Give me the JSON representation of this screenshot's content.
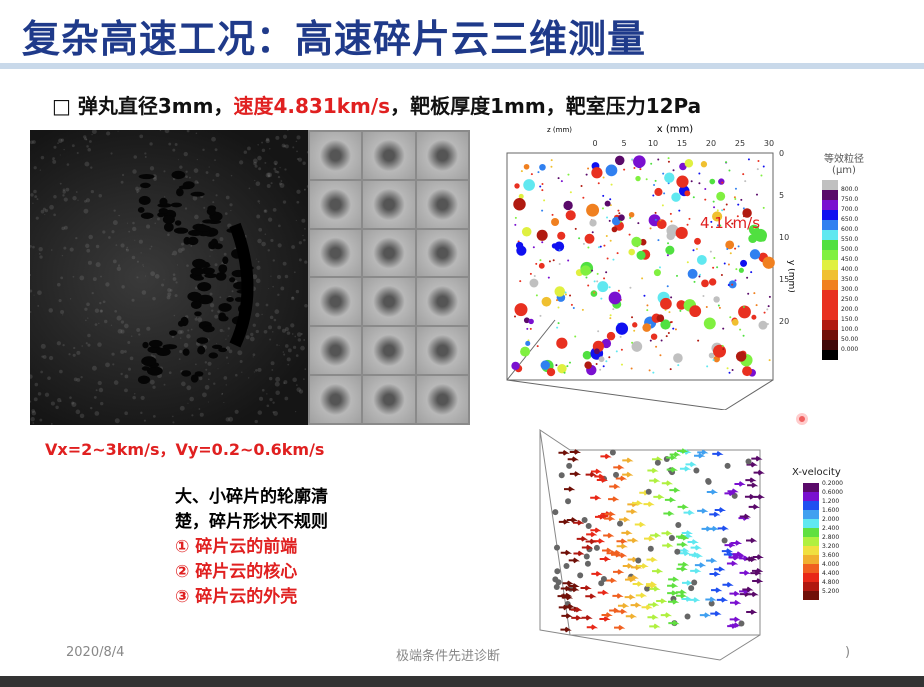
{
  "title": "复杂高速工况：高速碎片云三维测量",
  "subtitle": {
    "prefix": "□ 弹丸直径3mm，",
    "red": "速度4.831km/s",
    "suffix": "，靶板厚度1mm，靶室压力12Pa"
  },
  "velocity_text": "Vx=2~3km/s，Vy=0.2~0.6km/s",
  "notes": {
    "line1": "大、小碎片的轮廓清",
    "line2": "楚，碎片形状不规则",
    "items": [
      "① 碎片云的前端",
      "② 碎片云的核心",
      "③ 碎片云的外壳"
    ]
  },
  "plot1": {
    "x_label": "x (mm)",
    "y_label": "y (mm)",
    "z_label": "z (mm)",
    "x_ticks": [
      "0",
      "5",
      "10",
      "15",
      "20",
      "25",
      "30"
    ],
    "y_ticks": [
      "0",
      "5",
      "10",
      "15",
      "20"
    ],
    "annotation": "4.1km/s",
    "colorbar_title": "等效粒径",
    "colorbar_unit": "(μm)",
    "colorbar_labels": [
      "800.0",
      "750.0",
      "700.0",
      "650.0",
      "600.0",
      "550.0",
      "500.0",
      "450.0",
      "400.0",
      "350.0",
      "300.0",
      "250.0",
      "200.0",
      "150.0",
      "100.0",
      "50.00",
      "0.000"
    ],
    "colorbar_colors": [
      "#c0c0c0",
      "#5a0a6a",
      "#7a10d0",
      "#1010f0",
      "#3080f0",
      "#60e8f0",
      "#50e040",
      "#80f040",
      "#e0f040",
      "#f0c030",
      "#f08020",
      "#e83020",
      "#e83020",
      "#e83020",
      "#b01a10",
      "#701008",
      "#400808",
      "#000000"
    ]
  },
  "plot2": {
    "colorbar_title": "X-velocity",
    "colorbar_labels": [
      "0.2000",
      "0.6000",
      "1.200",
      "1.600",
      "2.000",
      "2.400",
      "2.800",
      "3.200",
      "3.600",
      "4.000",
      "4.400",
      "4.800",
      "5.200"
    ],
    "colorbar_colors": [
      "#5a0a6a",
      "#7a10d0",
      "#2050f0",
      "#40a0f0",
      "#60e8f0",
      "#60e040",
      "#b0f040",
      "#f0e040",
      "#f0b030",
      "#f06020",
      "#e82818",
      "#b01810",
      "#701008"
    ]
  },
  "footer": {
    "date": "2020/8/4",
    "center": "极端条件先进诊断",
    "page": ")"
  }
}
